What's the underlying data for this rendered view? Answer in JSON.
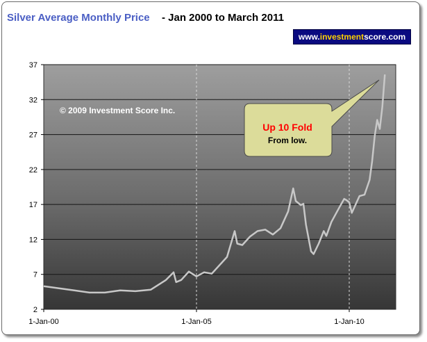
{
  "title": {
    "main": "Silver Average Monthly Price",
    "sub": " - Jan 2000 to March 2011"
  },
  "brand": {
    "prefix": "www.",
    "highlight": "investment",
    "suffix": "score.com"
  },
  "annotations": {
    "copyright": "© 2009 Investment Score Inc.",
    "callout_title": "Up 10 Fold",
    "callout_sub": "From low."
  },
  "colors": {
    "title": "#4a5ec4",
    "callout_title": "#ff0000",
    "line": "#c8c8c8",
    "brand_bg": "#0a0a80",
    "brand_highlight": "#ffd200",
    "callout_bg": "#dcdc9a"
  },
  "chart_data": {
    "type": "line",
    "title": "Silver Average Monthly Price",
    "subtitle": " - Jan 2000 to March 2011",
    "xlabel": "",
    "ylabel": "",
    "ylim": [
      2,
      37
    ],
    "yticks": [
      2,
      7,
      12,
      17,
      22,
      27,
      32,
      37
    ],
    "xticks": [
      "1-Jan-00",
      "1-Jan-05",
      "1-Jan-10"
    ],
    "grid": true,
    "legend": "none",
    "series": [
      {
        "x": [
          "2000-01",
          "2000-07",
          "2001-01",
          "2001-07",
          "2002-01",
          "2002-07",
          "2003-01",
          "2003-07",
          "2004-01",
          "2004-04",
          "2004-05",
          "2004-07",
          "2004-10",
          "2005-01",
          "2005-04",
          "2005-07",
          "2006-01",
          "2006-04",
          "2006-05",
          "2006-07",
          "2006-10",
          "2007-01",
          "2007-04",
          "2007-07",
          "2007-10",
          "2008-01",
          "2008-03",
          "2008-04",
          "2008-06",
          "2008-07",
          "2008-08",
          "2008-10",
          "2008-11",
          "2009-01",
          "2009-03",
          "2009-04",
          "2009-06",
          "2009-09",
          "2009-11",
          "2009-12",
          "2010-01",
          "2010-02",
          "2010-05",
          "2010-07",
          "2010-09",
          "2010-10",
          "2010-11",
          "2010-12",
          "2011-01",
          "2011-02",
          "2011-03"
        ],
        "values": [
          5.3,
          5.0,
          4.7,
          4.4,
          4.4,
          4.7,
          4.6,
          4.8,
          6.2,
          7.3,
          5.9,
          6.2,
          7.4,
          6.7,
          7.3,
          7.1,
          9.5,
          13.2,
          11.4,
          11.2,
          12.4,
          13.2,
          13.4,
          12.7,
          13.6,
          16.0,
          19.3,
          17.5,
          16.9,
          17.1,
          14.1,
          10.3,
          9.9,
          11.4,
          13.2,
          12.5,
          14.5,
          16.5,
          17.8,
          17.6,
          17.3,
          15.8,
          18.2,
          18.4,
          20.5,
          23.2,
          26.8,
          29.1,
          27.8,
          31.0,
          35.6
        ]
      }
    ]
  }
}
